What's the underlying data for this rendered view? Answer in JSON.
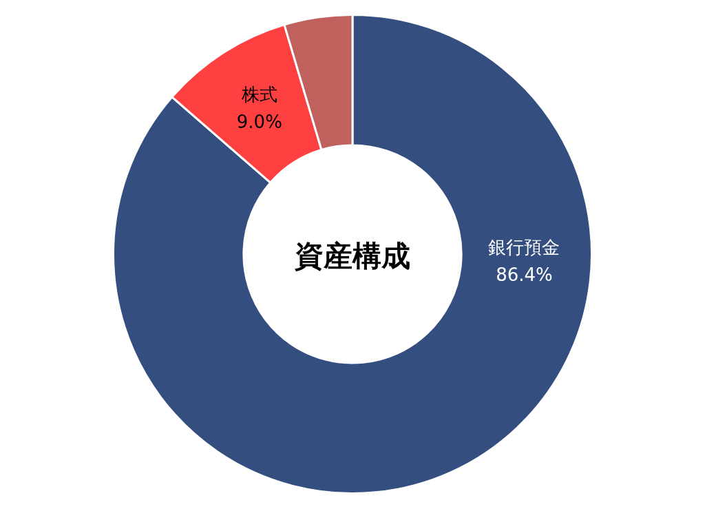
{
  "chart_data": {
    "type": "donut",
    "title": "資産構成",
    "categories": [
      "銀行預金",
      "株式",
      null
    ],
    "values": [
      86.4,
      9.0,
      4.6
    ],
    "colors": [
      "#344e80",
      "#ff4040",
      "#c0615d"
    ],
    "value_labels": [
      "86.4%",
      "9.0%",
      null
    ]
  }
}
